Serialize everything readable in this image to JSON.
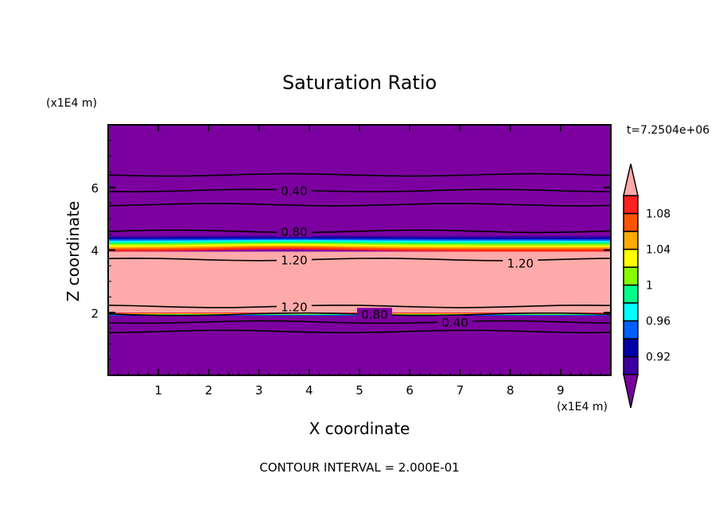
{
  "chart_data": {
    "type": "heatmap",
    "subtype": "filled-contour",
    "title": "Saturation Ratio",
    "xlabel": "X coordinate",
    "ylabel": "Z coordinate",
    "x_units": "(x1E4 m)",
    "y_units": "(x1E4 m)",
    "time_label": "t=7.2504e+06",
    "footer": "CONTOUR INTERVAL = 2.000E-01",
    "xlim": [
      0,
      10
    ],
    "ylim": [
      0,
      8
    ],
    "xticks": [
      "1",
      "2",
      "3",
      "4",
      "5",
      "6",
      "7",
      "8",
      "9"
    ],
    "yticks": [
      "2",
      "4",
      "6"
    ],
    "colorbar": {
      "levels": [
        0.9,
        0.92,
        0.94,
        0.96,
        0.98,
        1.0,
        1.02,
        1.04,
        1.06,
        1.08,
        1.1
      ],
      "labels": [
        "0.92",
        "0.96",
        "1",
        "1.04",
        "1.08"
      ],
      "label_values": [
        0.92,
        0.96,
        1.0,
        1.04,
        1.08
      ],
      "colors": [
        "#3a00a0",
        "#0000a8",
        "#0060ff",
        "#00ffff",
        "#00ff88",
        "#88ff00",
        "#ffff00",
        "#ffaa00",
        "#ff5500",
        "#ff2020"
      ],
      "under_color": "#7c00a0",
      "over_color": "#ffaaaa"
    },
    "layers": [
      {
        "z": [
          0.0,
          1.9
        ],
        "value": "below 0.90"
      },
      {
        "z": [
          1.9,
          2.0
        ],
        "value": "0.90-1.10 transition"
      },
      {
        "z": [
          2.0,
          3.95
        ],
        "value": "above 1.10"
      },
      {
        "z": [
          3.95,
          4.45
        ],
        "value": "1.10-0.90 transition"
      },
      {
        "z": [
          4.45,
          8.0
        ],
        "value": "below 0.90"
      }
    ],
    "contours": [
      {
        "level": "",
        "z": 6.4
      },
      {
        "level": "0.40",
        "z": 5.9
      },
      {
        "level": "",
        "z": 5.45
      },
      {
        "level": "0.80",
        "z": 4.6
      },
      {
        "level": "1.20",
        "z": 3.7
      },
      {
        "level": "1.20",
        "z": 2.2
      },
      {
        "level": "0.80",
        "z": 1.95
      },
      {
        "level": "0.40",
        "z": 1.7
      },
      {
        "level": "",
        "z": 1.4
      }
    ],
    "extra_labels": [
      {
        "text": "1.20",
        "x": 8.2,
        "z": 3.6
      }
    ]
  }
}
